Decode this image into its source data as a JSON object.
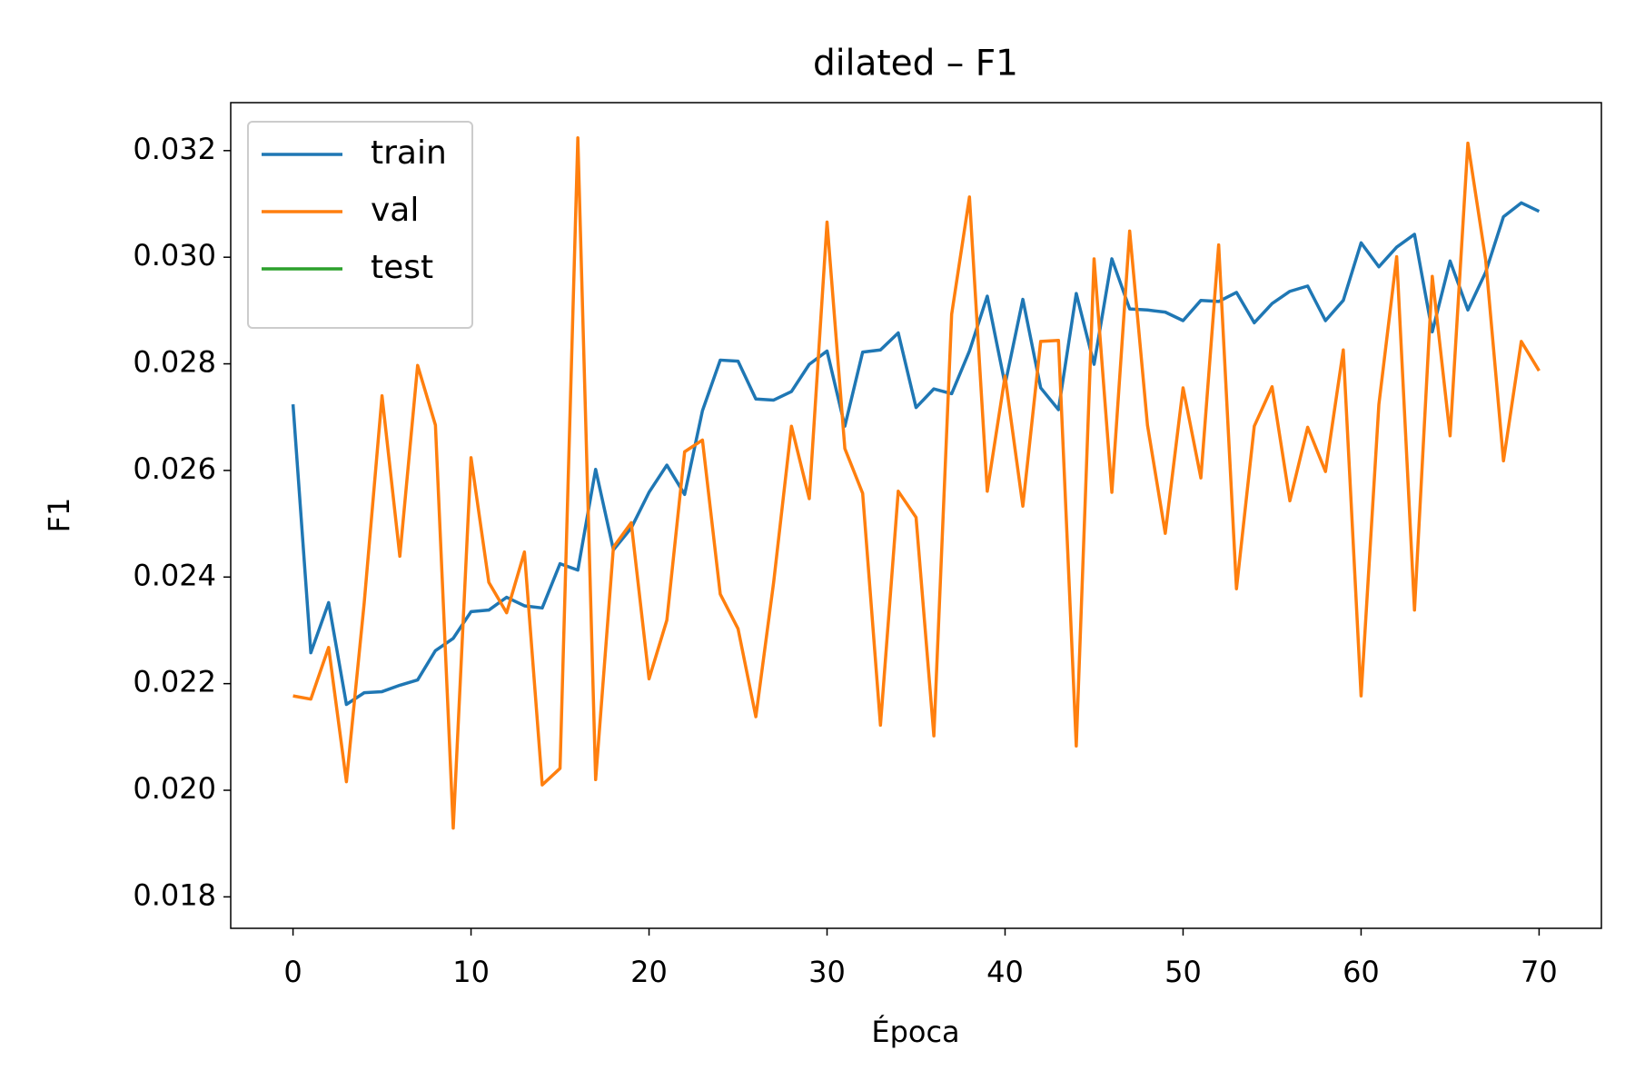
{
  "chart_data": {
    "type": "line",
    "title": "dilated – F1",
    "xlabel": "Época",
    "ylabel": "F1",
    "x": [
      0,
      1,
      2,
      3,
      4,
      5,
      6,
      7,
      8,
      9,
      10,
      11,
      12,
      13,
      14,
      15,
      16,
      17,
      18,
      19,
      20,
      21,
      22,
      23,
      24,
      25,
      26,
      27,
      28,
      29,
      30,
      31,
      32,
      33,
      34,
      35,
      36,
      37,
      38,
      39,
      40,
      41,
      42,
      43,
      44,
      45,
      46,
      47,
      48,
      49,
      50,
      51,
      52,
      53,
      54,
      55,
      56,
      57,
      58,
      59,
      60,
      61,
      62,
      63,
      64,
      65,
      66,
      67,
      68,
      69,
      70
    ],
    "series": [
      {
        "name": "train",
        "color": "#1f77b4",
        "values": [
          0.02724,
          0.02258,
          0.02352,
          0.02161,
          0.02183,
          0.02185,
          0.02197,
          0.02207,
          0.02262,
          0.02285,
          0.02335,
          0.02338,
          0.02362,
          0.02346,
          0.02342,
          0.02425,
          0.02413,
          0.02602,
          0.02451,
          0.02492,
          0.02559,
          0.0261,
          0.02555,
          0.02712,
          0.02807,
          0.02805,
          0.02734,
          0.02732,
          0.02748,
          0.02799,
          0.02824,
          0.02683,
          0.02822,
          0.02826,
          0.02858,
          0.02718,
          0.02753,
          0.02744,
          0.02824,
          0.02927,
          0.02761,
          0.02921,
          0.02755,
          0.02714,
          0.02932,
          0.02799,
          0.02997,
          0.02903,
          0.02901,
          0.02897,
          0.02881,
          0.02919,
          0.02917,
          0.02934,
          0.02877,
          0.02913,
          0.02936,
          0.02946,
          0.02881,
          0.02919,
          0.03027,
          0.02982,
          0.03019,
          0.03043,
          0.0286,
          0.02993,
          0.02901,
          0.02972,
          0.03076,
          0.03102,
          0.03086
        ]
      },
      {
        "name": "val",
        "color": "#ff7f0e",
        "values": [
          0.02177,
          0.02171,
          0.02268,
          0.02016,
          0.02352,
          0.0274,
          0.02439,
          0.02797,
          0.02685,
          0.01929,
          0.02624,
          0.0239,
          0.02333,
          0.02447,
          0.0201,
          0.02041,
          0.03224,
          0.0202,
          0.02456,
          0.02502,
          0.02209,
          0.02319,
          0.02635,
          0.02657,
          0.02368,
          0.02303,
          0.02138,
          0.0239,
          0.02683,
          0.02547,
          0.03066,
          0.02641,
          0.02557,
          0.02122,
          0.02561,
          0.02512,
          0.02102,
          0.02893,
          0.03113,
          0.02561,
          0.02777,
          0.02533,
          0.02842,
          0.02844,
          0.02083,
          0.02997,
          0.02559,
          0.03049,
          0.02685,
          0.02482,
          0.02755,
          0.02586,
          0.03023,
          0.02378,
          0.02683,
          0.02757,
          0.02543,
          0.02681,
          0.02598,
          0.02826,
          0.02177,
          0.02724,
          0.03001,
          0.02338,
          0.02964,
          0.02665,
          0.03214,
          0.02995,
          0.02618,
          0.02842,
          0.02787
        ]
      },
      {
        "name": "test",
        "color": "#2ca02c",
        "values": [
          null,
          null,
          null,
          null,
          null,
          null,
          null,
          null,
          null,
          null,
          null,
          null,
          null,
          null,
          null,
          null,
          null,
          null,
          null,
          null,
          null,
          null,
          null,
          null,
          null,
          null,
          null,
          null,
          null,
          null,
          null,
          null,
          null,
          null,
          null,
          null,
          null,
          null,
          null,
          null,
          null,
          null,
          null,
          null,
          null,
          null,
          null,
          null,
          null,
          null,
          null,
          null,
          null,
          null,
          null,
          null,
          null,
          null,
          null,
          null,
          null,
          null,
          null,
          null,
          null,
          null,
          null,
          null,
          null,
          null,
          null
        ]
      }
    ],
    "xlim": [
      -3.5,
      73.5
    ],
    "xticks": [
      0,
      10,
      20,
      30,
      40,
      50,
      60,
      70
    ],
    "ylim": [
      0.01741,
      0.0329
    ],
    "yticks": [
      0.018,
      {
        "value": 0.02,
        "label": "0.020"
      },
      0.022,
      0.024,
      0.026,
      0.028,
      {
        "value": 0.03,
        "label": "0.030"
      },
      0.032
    ],
    "grid": false,
    "legend": "upper left"
  }
}
